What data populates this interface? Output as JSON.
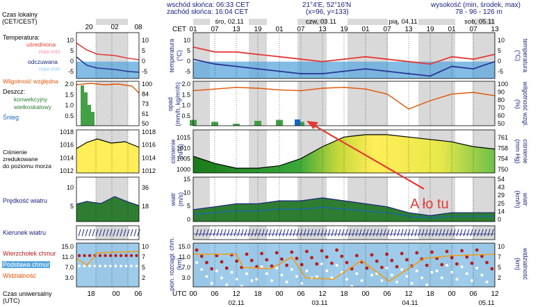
{
  "header": {
    "sunrise": "wschód słońca: 06:33 CET",
    "sunset": "zachód słońca: 16:04 CET",
    "coords": "21°4'E, 52°16'N",
    "grid": "(x=96, y=133)",
    "elev_label": "wysokość (min, środek, max)",
    "elev_value": "78 - 96 - 126 m"
  },
  "left": {
    "tz_label": [
      "Czas lokalny",
      "(CET/CEST)"
    ],
    "hours": [
      "20",
      "02",
      "08"
    ],
    "temp_title": "Temperatura:",
    "temp_avg": "uśredniona",
    "temp_avg_range": "max-min",
    "temp_feel": "odczuwana",
    "temp_feel_range": "max-min",
    "humidity": "Wilgotność względna",
    "rain_title": "Deszcz:",
    "rain_conv": "konwekcyjny",
    "rain_large": "wielkoskalowy",
    "snow": "Śnieg",
    "pressure_lines": [
      "Ciśnienie",
      "zredukowane",
      "do poziomu morza"
    ],
    "wind_speed": "Prędkość wiatru",
    "wind_dir": "Kierunek wiatru",
    "cloud_top": "Wierzchołek chmur",
    "cloud_base": "Podstawa chmur",
    "visibility": "Widzialność",
    "utc_lines": [
      "Czas uniwersalny",
      "(UTC)"
    ],
    "utc_hours": [
      "18",
      "00",
      "06"
    ]
  },
  "main": {
    "cet_label": "CET",
    "utc_label": "UTC",
    "days_top": [
      "śro, 02.11",
      "czw, 03.11",
      "pią, 04.11",
      "sob, 05.11"
    ],
    "hours_top": [
      "01",
      "07",
      "13",
      "19",
      "01",
      "07",
      "13",
      "19",
      "01",
      "07",
      "13",
      "19",
      "01",
      "07",
      "13"
    ],
    "hours_bottom": [
      "00",
      "06",
      "12",
      "18",
      "00",
      "06",
      "12",
      "18",
      "00",
      "06",
      "12",
      "18",
      "00",
      "06",
      "12"
    ],
    "days_bottom": [
      "02.11",
      "03.11",
      "04.11",
      "05.11"
    ],
    "temp_axis_l": [
      "temperatura",
      "(°C)"
    ],
    "temp_axis_r": [
      "(°C)",
      "temperatura"
    ],
    "rain_axis_l": [
      "opad",
      "(mm/h, kg/m²/h)"
    ],
    "rain_axis_r": [
      "(%)",
      "wilgotność wzgl."
    ],
    "pres_axis_l": [
      "ciśnienie",
      "(hPa)"
    ],
    "pres_axis_r": [
      "(mm Hg)",
      "ciśnienie"
    ],
    "wind_axis_l": [
      "wiatr",
      "(m/s)"
    ],
    "wind_axis_r": [
      "(km/h)",
      "wiatr"
    ],
    "cloud_axis_l": [
      "pion. rozciągł. chm.",
      "(km)"
    ],
    "cloud_axis_r": [
      "(km)",
      "widzialność"
    ],
    "temp_ticks_l": [
      "10",
      "5",
      "0",
      "-5"
    ],
    "temp_ticks_r": [
      "10",
      "5",
      "0",
      "-5"
    ],
    "rain_ticks_l": [
      "2.0",
      "1.5",
      "1.0",
      "0.5"
    ],
    "rain_ticks_r": [
      "100",
      "90",
      "80",
      "70",
      "60",
      "50"
    ],
    "pres_ticks_l": [
      "1015",
      "1010",
      "1005",
      "1000"
    ],
    "pres_ticks_r": [
      "761",
      "758",
      "754",
      "750"
    ],
    "wind_ticks_l": [
      "15",
      "10",
      "5",
      "0"
    ],
    "wind_ticks_r": [
      "54",
      "43",
      "29",
      "25",
      "14",
      "0"
    ],
    "cloud_ticks_l": [
      "15.0",
      "11.0",
      "7.0",
      "3.0"
    ],
    "cloud_ticks_r": [
      "10",
      "7",
      "5",
      "2"
    ],
    "annotation": "A ło tu"
  },
  "colors": {
    "avg_temp": "#e53935",
    "feel_temp": "#283593",
    "humidity": "#e65100",
    "conv_rain": "#43a047",
    "snow": "#1565c0",
    "pressure_high": "#ffee58",
    "pressure_low": "#1b7a1b",
    "wind": "#2e7d32",
    "cloud_bg": "#8ec3e8",
    "annotation": "#e53935",
    "night": "#d9d9d9"
  },
  "chart_data": {
    "type": "line",
    "x_label": "hours from 00 UTC 02.11",
    "x": [
      0,
      6,
      12,
      18,
      24,
      30,
      36,
      42,
      48,
      54,
      60,
      66,
      72,
      78,
      84
    ],
    "series": [
      {
        "name": "uśredniona",
        "values": [
          6,
          4,
          4,
          3,
          2,
          1,
          0,
          1,
          2,
          1,
          0,
          -1,
          2,
          1,
          3
        ]
      },
      {
        "name": "odczuwana",
        "values": [
          1,
          -1,
          -2,
          -3,
          -4,
          -5,
          -5,
          -4,
          -3,
          -4,
          -5,
          -6,
          -2,
          -3,
          0
        ]
      },
      {
        "name": "Wilgotność względna",
        "values": [
          92,
          94,
          96,
          95,
          93,
          92,
          95,
          96,
          94,
          88,
          70,
          80,
          88,
          90,
          86
        ]
      },
      {
        "name": "Ciśnienie",
        "values": [
          1007,
          1004,
          1002,
          1002,
          1003,
          1006,
          1011,
          1015,
          1016,
          1016,
          1015,
          1014,
          1013,
          1011,
          1010
        ]
      },
      {
        "name": "Prędkość wiatru",
        "values": [
          4,
          5,
          6,
          6,
          7,
          7,
          8,
          7,
          6,
          5,
          3,
          2,
          3,
          3,
          3
        ]
      }
    ],
    "rain": [
      0.3,
      0.2,
      0.1,
      0.25,
      0.3,
      0.2,
      0.0,
      0.0,
      0.0,
      0.0,
      0.0,
      0.0,
      0.0,
      0.0,
      0.0
    ],
    "ylim_temp": [
      -7,
      12
    ],
    "ylim_pressure": [
      1000,
      1018
    ],
    "ylim_wind": [
      0,
      15
    ]
  }
}
